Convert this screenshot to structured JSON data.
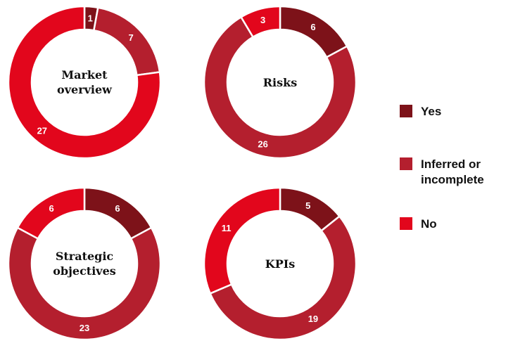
{
  "legend": {
    "labels": [
      "Yes",
      "Inferred or incomplete",
      "No"
    ],
    "colors": [
      "#7d1219",
      "#b41f2e",
      "#e2061c"
    ]
  },
  "chart_data": [
    {
      "type": "donut",
      "title": "Market overview",
      "values": [
        1,
        7,
        27
      ]
    },
    {
      "type": "donut",
      "title": "Risks",
      "values": [
        6,
        26,
        3
      ]
    },
    {
      "type": "donut",
      "title": "Strategic objectives",
      "values": [
        6,
        23,
        6
      ]
    },
    {
      "type": "donut",
      "title": "KPIs",
      "values": [
        5,
        19,
        11
      ]
    }
  ]
}
